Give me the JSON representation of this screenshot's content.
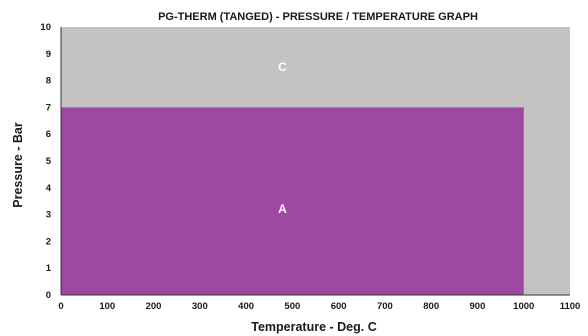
{
  "chart_data": {
    "type": "area",
    "title": "PG-THERM (TANGED) -  PRESSURE / TEMPERATURE GRAPH",
    "xlabel": "Temperature - Deg. C",
    "ylabel": "Pressure - Bar",
    "xlim": [
      0,
      1100
    ],
    "ylim": [
      0,
      10
    ],
    "xticks": [
      0,
      100,
      200,
      300,
      400,
      500,
      600,
      700,
      800,
      900,
      1000,
      1100
    ],
    "yticks": [
      0,
      1,
      2,
      3,
      4,
      5,
      6,
      7,
      8,
      9,
      10
    ],
    "regions": [
      {
        "label": "C",
        "color": "#c3c3c3",
        "x": [
          0,
          1100
        ],
        "y": [
          0,
          10
        ],
        "label_at": [
          470,
          8.5
        ]
      },
      {
        "label": "A",
        "color": "#9e48a4",
        "x": [
          0,
          1000
        ],
        "y": [
          0,
          7
        ],
        "label_at": [
          470,
          3.2
        ]
      }
    ],
    "grid": false,
    "legend": "none"
  }
}
